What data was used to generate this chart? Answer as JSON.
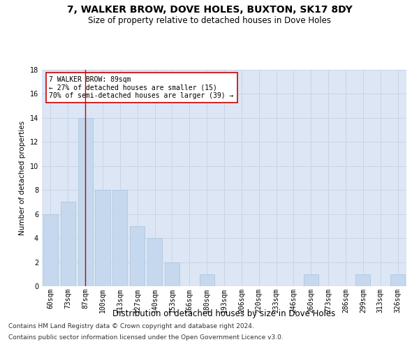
{
  "title": "7, WALKER BROW, DOVE HOLES, BUXTON, SK17 8DY",
  "subtitle": "Size of property relative to detached houses in Dove Holes",
  "xlabel": "Distribution of detached houses by size in Dove Holes",
  "ylabel": "Number of detached properties",
  "categories": [
    "60sqm",
    "73sqm",
    "87sqm",
    "100sqm",
    "113sqm",
    "127sqm",
    "140sqm",
    "153sqm",
    "166sqm",
    "180sqm",
    "193sqm",
    "206sqm",
    "220sqm",
    "233sqm",
    "246sqm",
    "260sqm",
    "273sqm",
    "286sqm",
    "299sqm",
    "313sqm",
    "326sqm"
  ],
  "values": [
    6,
    7,
    14,
    8,
    8,
    5,
    4,
    2,
    0,
    1,
    0,
    0,
    0,
    0,
    0,
    1,
    0,
    0,
    1,
    0,
    1
  ],
  "bar_color": "#c5d8ed",
  "bar_edge_color": "#a8c4de",
  "highlight_index": 2,
  "highlight_line_color": "#cc0000",
  "ylim": [
    0,
    18
  ],
  "yticks": [
    0,
    2,
    4,
    6,
    8,
    10,
    12,
    14,
    16,
    18
  ],
  "annotation_box_text": "7 WALKER BROW: 89sqm\n← 27% of detached houses are smaller (15)\n70% of semi-detached houses are larger (39) →",
  "annotation_box_color": "#ffffff",
  "annotation_box_edge_color": "#cc0000",
  "grid_color": "#c8d4e8",
  "background_color": "#dce6f5",
  "footer_line1": "Contains HM Land Registry data © Crown copyright and database right 2024.",
  "footer_line2": "Contains public sector information licensed under the Open Government Licence v3.0.",
  "title_fontsize": 10,
  "subtitle_fontsize": 8.5,
  "xlabel_fontsize": 8.5,
  "ylabel_fontsize": 7.5,
  "tick_fontsize": 7,
  "annotation_fontsize": 7,
  "footer_fontsize": 6.5
}
